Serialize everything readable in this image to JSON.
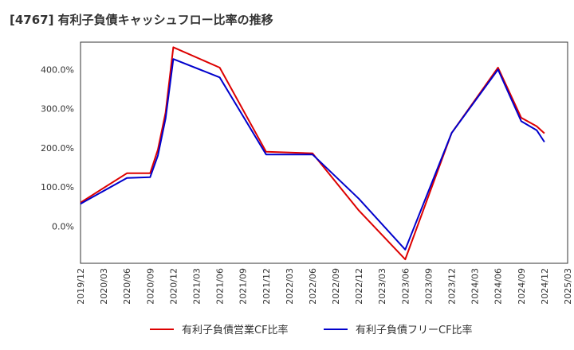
{
  "chart_data": {
    "type": "line",
    "title": "[4767]  有利子負債キャッシュフロー比率の推移",
    "xlabel": "",
    "ylabel": "",
    "categories": [
      "2019/12",
      "2020/03",
      "2020/06",
      "2020/09",
      "2020/12",
      "2021/03",
      "2021/06",
      "2021/09",
      "2021/12",
      "2022/03",
      "2022/06",
      "2022/09",
      "2022/12",
      "2023/03",
      "2023/06",
      "2023/09",
      "2023/12",
      "2024/03",
      "2024/06",
      "2024/09",
      "2024/12",
      "2025/03"
    ],
    "yticks": [
      0,
      100,
      200,
      300,
      400
    ],
    "ytick_labels": [
      "0.0%",
      "100.0%",
      "200.0%",
      "300.0%",
      "400.0%"
    ],
    "ylim": [
      -95,
      470
    ],
    "grid": true,
    "legend_position": "bottom",
    "series": [
      {
        "name": "有利子負債営業CF比率",
        "color": "#dd0000",
        "points": [
          {
            "x": "2019/12",
            "y": 60
          },
          {
            "x": "2020/06",
            "y": 135
          },
          {
            "x": "2020/09",
            "y": 135
          },
          {
            "x": "2020/10",
            "y": 195
          },
          {
            "x": "2020/11",
            "y": 290
          },
          {
            "x": "2020/12",
            "y": 457
          },
          {
            "x": "2021/06",
            "y": 405
          },
          {
            "x": "2021/12",
            "y": 190
          },
          {
            "x": "2022/06",
            "y": 186
          },
          {
            "x": "2022/12",
            "y": 40
          },
          {
            "x": "2023/06",
            "y": -85
          },
          {
            "x": "2023/12",
            "y": 238
          },
          {
            "x": "2024/06",
            "y": 405
          },
          {
            "x": "2024/09",
            "y": 277
          },
          {
            "x": "2024/11",
            "y": 255
          },
          {
            "x": "2024/12",
            "y": 237
          }
        ]
      },
      {
        "name": "有利子負債フリーCF比率",
        "color": "#0000cc",
        "points": [
          {
            "x": "2019/12",
            "y": 57
          },
          {
            "x": "2020/06",
            "y": 123
          },
          {
            "x": "2020/09",
            "y": 125
          },
          {
            "x": "2020/10",
            "y": 180
          },
          {
            "x": "2020/11",
            "y": 275
          },
          {
            "x": "2020/12",
            "y": 427
          },
          {
            "x": "2021/06",
            "y": 380
          },
          {
            "x": "2021/12",
            "y": 183
          },
          {
            "x": "2022/06",
            "y": 183
          },
          {
            "x": "2022/12",
            "y": 70
          },
          {
            "x": "2023/06",
            "y": -60
          },
          {
            "x": "2023/12",
            "y": 238
          },
          {
            "x": "2024/06",
            "y": 400
          },
          {
            "x": "2024/09",
            "y": 268
          },
          {
            "x": "2024/11",
            "y": 245
          },
          {
            "x": "2024/12",
            "y": 215
          }
        ]
      }
    ]
  }
}
